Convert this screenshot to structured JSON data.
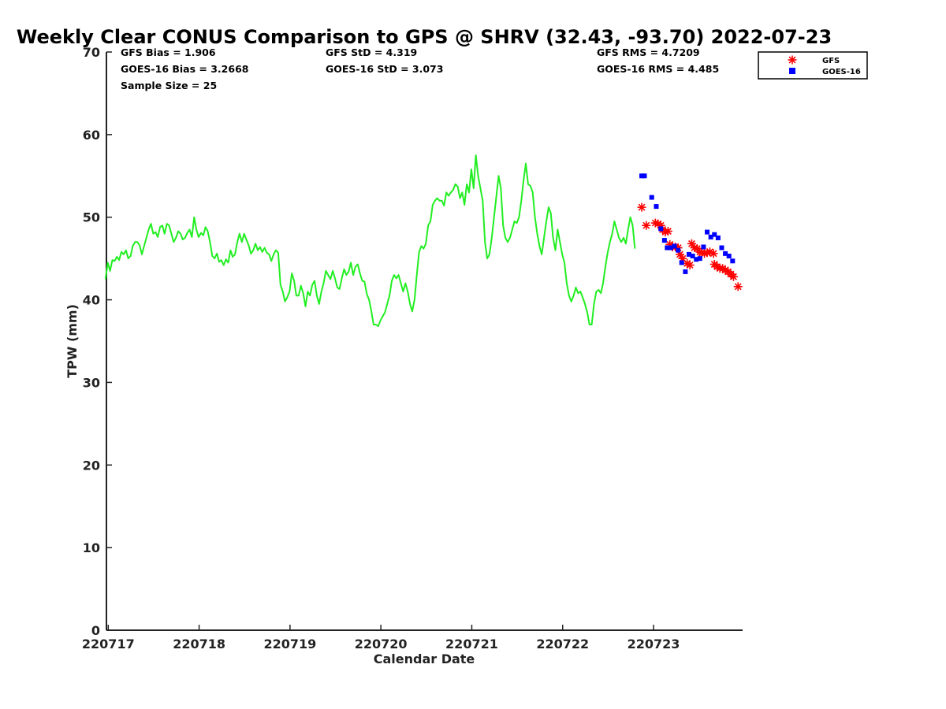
{
  "chart_data": {
    "type": "scatter",
    "title": "Weekly Clear CONUS Comparison to GPS @ SHRV (32.43, -93.70) 2022-07-23",
    "xlabel": "Calendar Date",
    "ylabel": "TPW (mm)",
    "ylim": [
      0,
      70
    ],
    "yticks": [
      0,
      10,
      20,
      30,
      40,
      50,
      60,
      70
    ],
    "xlim": [
      -0.02,
      6.98
    ],
    "xticks": [
      {
        "pos": 0,
        "label": "220717"
      },
      {
        "pos": 1,
        "label": "220718"
      },
      {
        "pos": 2,
        "label": "220719"
      },
      {
        "pos": 3,
        "label": "220720"
      },
      {
        "pos": 4,
        "label": "220721"
      },
      {
        "pos": 5,
        "label": "220722"
      },
      {
        "pos": 6,
        "label": "220723"
      }
    ],
    "grid": false,
    "legend_position": "top-right",
    "legend": [
      {
        "name": "GFS",
        "marker": "asterisk",
        "color": "#ff0000"
      },
      {
        "name": "GOES-16",
        "marker": "square",
        "color": "#0000ff"
      }
    ],
    "stats": {
      "gfs_bias": "GFS Bias = 1.906",
      "goes_bias": "GOES-16 Bias = 3.2668",
      "sample_size": "Sample Size = 25",
      "gfs_std": "GFS StD = 4.319",
      "goes_std": "GOES-16 StD = 3.073",
      "gfs_rms": "GFS RMS = 4.7209",
      "goes_rms": "GOES-16 RMS = 4.485"
    },
    "series": [
      {
        "kind": "line",
        "color": "#22ee22",
        "x_start": -0.03,
        "x_step": 0.025,
        "values": [
          42.5,
          44.5,
          43.5,
          44.8,
          44.7,
          45.2,
          44.8,
          45.8,
          45.5,
          46.0,
          45.0,
          45.3,
          46.5,
          47.0,
          47.0,
          46.6,
          45.5,
          46.5,
          47.5,
          48.5,
          49.2,
          48.0,
          48.2,
          47.6,
          48.8,
          49.0,
          48.0,
          49.2,
          49.0,
          48.0,
          47.0,
          47.5,
          48.3,
          48.0,
          47.3,
          47.5,
          48.1,
          48.5,
          47.6,
          50.0,
          48.5,
          47.6,
          48.1,
          47.8,
          48.8,
          48.3,
          47.0,
          45.3,
          45.0,
          45.6,
          44.6,
          44.8,
          44.2,
          44.9,
          44.5,
          46.0,
          45.2,
          45.5,
          47.0,
          48.0,
          47.0,
          48.0,
          47.3,
          46.6,
          45.6,
          46.0,
          46.8,
          46.0,
          46.4,
          45.8,
          46.3,
          45.7,
          45.5,
          44.7,
          45.5,
          46.0,
          45.7,
          41.8,
          41.0,
          39.8,
          40.3,
          41.0,
          43.2,
          42.3,
          40.5,
          40.5,
          41.7,
          40.8,
          39.2,
          41.0,
          40.5,
          41.8,
          42.3,
          40.5,
          39.5,
          41.0,
          42.0,
          43.5,
          43.0,
          42.5,
          43.5,
          42.6,
          41.5,
          41.3,
          42.6,
          43.7,
          43.0,
          43.4,
          44.5,
          43.0,
          44.0,
          44.3,
          43.2,
          42.3,
          42.2,
          40.7,
          40.0,
          38.6,
          37.0,
          37.0,
          36.8,
          37.5,
          38.0,
          38.5,
          39.5,
          40.5,
          42.3,
          43.0,
          42.6,
          43.0,
          42.0,
          41.0,
          42.0,
          41.0,
          39.5,
          38.6,
          40.0,
          43.0,
          45.8,
          46.5,
          46.2,
          46.8,
          49.0,
          49.5,
          51.5,
          52.0,
          52.3,
          52.0,
          52.0,
          51.4,
          53.0,
          52.6,
          53.0,
          53.3,
          54.0,
          53.7,
          52.3,
          53.0,
          51.5,
          54.0,
          53.0,
          55.8,
          53.5,
          57.5,
          55.0,
          53.5,
          52.0,
          47.0,
          45.0,
          45.5,
          47.5,
          50.0,
          52.5,
          55.0,
          53.5,
          49.0,
          47.5,
          47.0,
          47.5,
          48.5,
          49.5,
          49.3,
          50.0,
          52.0,
          54.5,
          56.5,
          54.0,
          53.8,
          53.0,
          50.0,
          48.0,
          46.5,
          45.5,
          47.5,
          49.5,
          51.2,
          50.5,
          47.5,
          46.0,
          48.5,
          47.0,
          45.5,
          44.5,
          42.0,
          40.5,
          39.8,
          40.5,
          41.5,
          40.8,
          41.0,
          40.3,
          39.5,
          38.5,
          37.0,
          37.0,
          39.5,
          41.0,
          41.2,
          40.8,
          42.0,
          44.0,
          45.7,
          47.0,
          48.0,
          49.5,
          48.5,
          47.5,
          47.0,
          47.5,
          46.8,
          48.5,
          50.0,
          49.0,
          46.2
        ]
      },
      {
        "name": "GFS",
        "kind": "points",
        "marker": "asterisk",
        "color": "#ff0000",
        "points": [
          [
            5.87,
            51.2
          ],
          [
            5.92,
            49.0
          ],
          [
            6.02,
            49.3
          ],
          [
            6.05,
            49.2
          ],
          [
            6.08,
            49.0
          ],
          [
            6.1,
            48.5
          ],
          [
            6.13,
            48.2
          ],
          [
            6.16,
            48.3
          ],
          [
            6.18,
            46.7
          ],
          [
            6.21,
            46.4
          ],
          [
            6.24,
            46.4
          ],
          [
            6.27,
            46.3
          ],
          [
            6.29,
            45.5
          ],
          [
            6.32,
            45.0
          ],
          [
            6.37,
            44.4
          ],
          [
            6.4,
            44.2
          ],
          [
            6.42,
            46.8
          ],
          [
            6.45,
            46.3
          ],
          [
            6.48,
            46.2
          ],
          [
            6.51,
            45.8
          ],
          [
            6.53,
            45.7
          ],
          [
            6.56,
            45.6
          ],
          [
            6.59,
            45.7
          ],
          [
            6.62,
            45.8
          ],
          [
            6.66,
            45.6
          ],
          [
            6.67,
            44.3
          ],
          [
            6.7,
            44.0
          ],
          [
            6.73,
            43.8
          ],
          [
            6.76,
            43.8
          ],
          [
            6.79,
            43.6
          ],
          [
            6.82,
            43.4
          ],
          [
            6.85,
            43.1
          ],
          [
            6.88,
            42.8
          ],
          [
            6.93,
            41.6
          ]
        ]
      },
      {
        "name": "GOES-16",
        "kind": "points",
        "marker": "square",
        "color": "#0000ff",
        "points": [
          [
            5.87,
            55.0
          ],
          [
            5.9,
            55.0
          ],
          [
            5.98,
            52.4
          ],
          [
            6.03,
            51.3
          ],
          [
            6.08,
            48.6
          ],
          [
            6.12,
            47.2
          ],
          [
            6.15,
            46.3
          ],
          [
            6.19,
            46.3
          ],
          [
            6.23,
            46.5
          ],
          [
            6.27,
            46.0
          ],
          [
            6.31,
            44.5
          ],
          [
            6.35,
            43.4
          ],
          [
            6.39,
            45.5
          ],
          [
            6.43,
            45.3
          ],
          [
            6.47,
            44.9
          ],
          [
            6.51,
            45.0
          ],
          [
            6.55,
            46.4
          ],
          [
            6.59,
            48.2
          ],
          [
            6.63,
            47.6
          ],
          [
            6.67,
            47.9
          ],
          [
            6.71,
            47.5
          ],
          [
            6.75,
            46.3
          ],
          [
            6.79,
            45.6
          ],
          [
            6.83,
            45.3
          ],
          [
            6.87,
            44.7
          ]
        ]
      }
    ]
  }
}
